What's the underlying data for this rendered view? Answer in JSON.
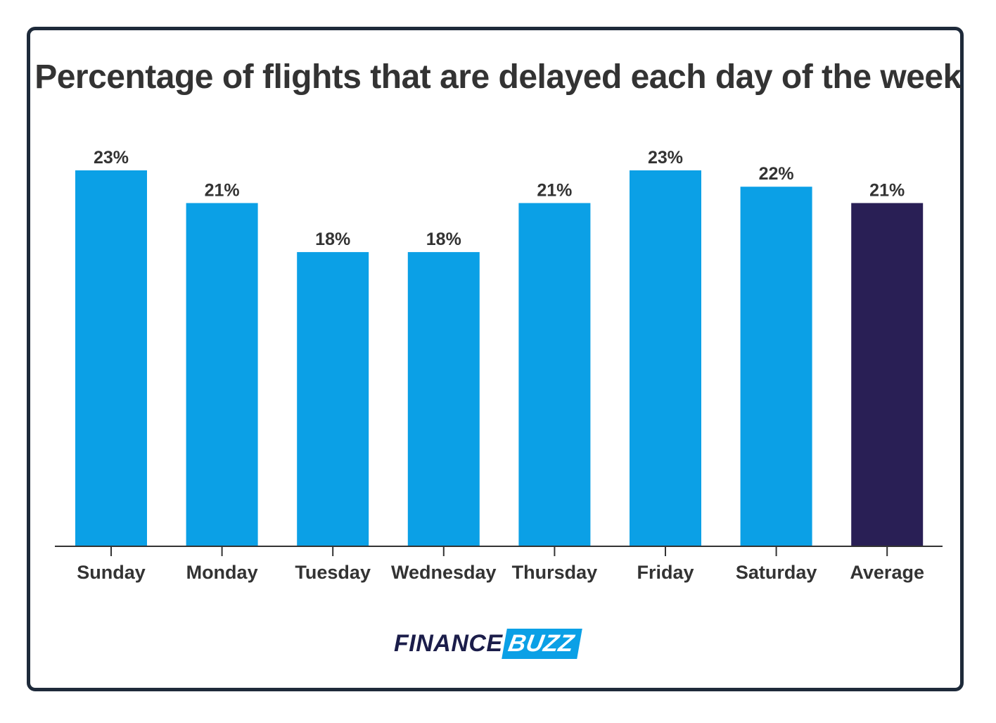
{
  "chart_data": {
    "type": "bar",
    "title": "Percentage of flights that are delayed each day of the week",
    "categories": [
      "Sunday",
      "Monday",
      "Tuesday",
      "Wednesday",
      "Thursday",
      "Friday",
      "Saturday",
      "Average"
    ],
    "values": [
      23,
      21,
      18,
      18,
      21,
      23,
      22,
      21
    ],
    "value_labels": [
      "23%",
      "21%",
      "18%",
      "18%",
      "21%",
      "23%",
      "22%",
      "21%"
    ],
    "xlabel": "",
    "ylabel": "",
    "ylim": [
      0,
      23
    ],
    "grid": false,
    "colors": {
      "bar": "#0ba0e6",
      "highlight": "#291f55",
      "highlight_category": "Average",
      "axis": "#333333"
    }
  },
  "logo": {
    "finance": "FINANCE",
    "buzz": "BUZZ"
  }
}
